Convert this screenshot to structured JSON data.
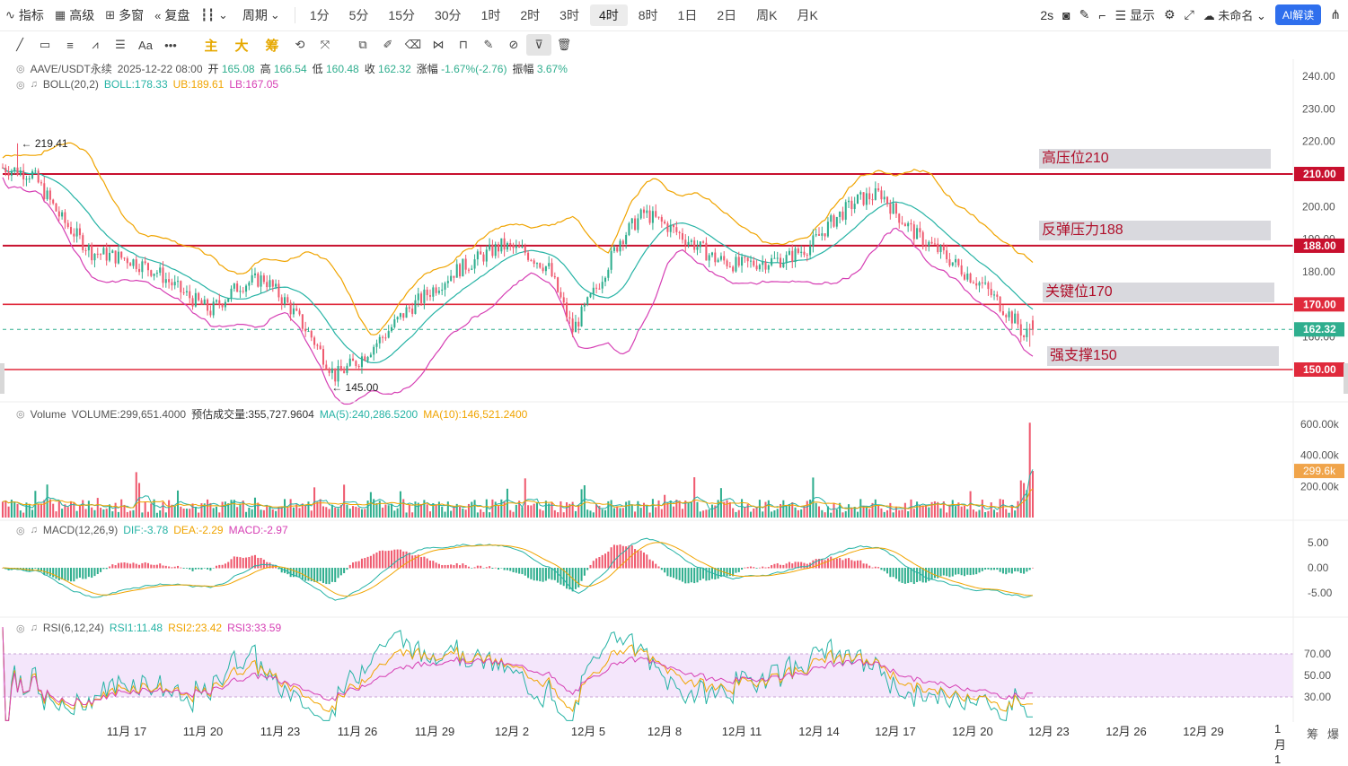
{
  "toolbar": {
    "indicators": "指标",
    "advanced": "高级",
    "multi_window": "多窗",
    "replay": "复盘",
    "period": "周期",
    "intervals": [
      "1分",
      "5分",
      "15分",
      "30分",
      "1时",
      "2时",
      "3时",
      "4时",
      "8时",
      "1日",
      "2日",
      "周K",
      "月K"
    ],
    "active_interval": "4时",
    "refresh": "2s",
    "display": "显示",
    "unnamed": "未命名",
    "ai_interpret": "AI解读"
  },
  "drawbar": {
    "main": "主",
    "big": "大",
    "chip": "筹",
    "text_tool": "Aa"
  },
  "price_legend": {
    "symbol": "AAVE/USDT永续",
    "datetime": "2025-12-22 08:00",
    "open_label": "开",
    "open": "165.08",
    "high_label": "高",
    "high": "166.54",
    "low_label": "低",
    "low": "160.48",
    "close_label": "收",
    "close": "162.32",
    "change_label": "涨幅",
    "change": "-1.67%(-2.76)",
    "amp_label": "振幅",
    "amp": "3.67%"
  },
  "boll_legend": {
    "name": "BOLL(20,2)",
    "boll": "BOLL:178.33",
    "ub": "UB:189.61",
    "lb": "LB:167.05"
  },
  "volume_legend": {
    "name": "Volume",
    "volume": "VOLUME:299,651.4000",
    "est": "预估成交量:355,727.9604",
    "ma5": "MA(5):240,286.5200",
    "ma10": "MA(10):146,521.2400"
  },
  "macd_legend": {
    "name": "MACD(12,26,9)",
    "dif": "DIF:-3.78",
    "dea": "DEA:-2.29",
    "macd": "MACD:-2.97"
  },
  "rsi_legend": {
    "name": "RSI(6,12,24)",
    "rsi1": "RSI1:11.48",
    "rsi2": "RSI2:23.42",
    "rsi3": "RSI3:33.59"
  },
  "annotations": {
    "high_marker": "← 219.41",
    "low_marker": "← 145.00",
    "zones": [
      "高压位210",
      "反弹压力188",
      "关键位170",
      "强支撑150"
    ]
  },
  "price_axis": [
    "240.00",
    "230.00",
    "220.00",
    "200.00",
    "190.00",
    "180.00",
    "160.00"
  ],
  "price_tags": {
    "l210": "210.00",
    "l188": "188.00",
    "l170": "170.00",
    "current": "162.32",
    "l150": "150.00"
  },
  "volume_axis": [
    "600.00k",
    "400.00k",
    "200.00k"
  ],
  "volume_tag": "299.6k",
  "macd_axis": [
    "5.00",
    "0.00",
    "-5.00"
  ],
  "rsi_axis": [
    "70.00",
    "50.00",
    "30.00"
  ],
  "x_labels": [
    "11月 17",
    "11月 20",
    "11月 23",
    "11月 26",
    "11月 29",
    "12月 2",
    "12月 5",
    "12月 8",
    "12月 11",
    "12月 14",
    "12月 17",
    "12月 20",
    "12月 23",
    "12月 26",
    "12月 29",
    "1月 1"
  ],
  "corner": [
    "筹",
    "爆"
  ],
  "colors": {
    "up": "#2fae8e",
    "down": "#ef5a6f",
    "level": "#c8102e",
    "boll_mid": "#26b3a5",
    "boll_ub": "#f0a400",
    "boll_lb": "#d63fb4",
    "zone": "#d9d9de"
  },
  "chart_data": {
    "type": "candlestick",
    "symbol": "AAVE/USDT永续",
    "interval": "4时",
    "ylim": [
      140,
      245
    ],
    "levels": [
      210,
      188,
      170,
      150
    ],
    "current_price": 162.32,
    "high": 219.41,
    "low": 145.0,
    "close_path": [
      [
        0,
        212
      ],
      [
        10,
        210
      ],
      [
        20,
        196
      ],
      [
        30,
        186
      ],
      [
        42,
        184
      ],
      [
        52,
        180
      ],
      [
        60,
        174
      ],
      [
        70,
        168
      ],
      [
        80,
        176
      ],
      [
        88,
        178
      ],
      [
        96,
        170
      ],
      [
        104,
        160
      ],
      [
        112,
        148
      ],
      [
        120,
        153
      ],
      [
        128,
        160
      ],
      [
        136,
        168
      ],
      [
        144,
        174
      ],
      [
        152,
        180
      ],
      [
        160,
        184
      ],
      [
        168,
        188
      ],
      [
        176,
        186
      ],
      [
        184,
        181
      ],
      [
        192,
        162
      ],
      [
        200,
        175
      ],
      [
        208,
        190
      ],
      [
        216,
        198
      ],
      [
        224,
        194
      ],
      [
        232,
        189
      ],
      [
        240,
        184
      ],
      [
        248,
        182
      ],
      [
        256,
        183
      ],
      [
        264,
        184
      ],
      [
        272,
        188
      ],
      [
        280,
        196
      ],
      [
        288,
        202
      ],
      [
        296,
        204
      ],
      [
        300,
        199
      ],
      [
        308,
        191
      ],
      [
        316,
        186
      ],
      [
        324,
        180
      ],
      [
        330,
        176
      ],
      [
        336,
        170
      ],
      [
        338,
        168
      ],
      [
        342,
        164
      ],
      [
        344,
        160
      ],
      [
        346,
        162.3
      ]
    ],
    "ma_volume_note": "Volume bars per 4h candle; spike at final candles"
  }
}
